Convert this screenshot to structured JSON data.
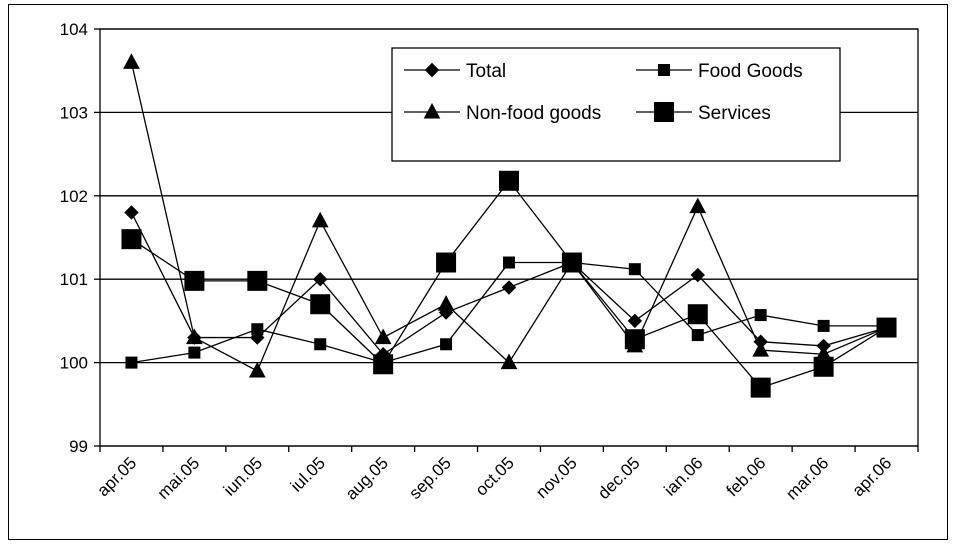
{
  "chart_data": {
    "type": "line",
    "title": "",
    "xlabel": "",
    "ylabel": "",
    "categories": [
      "apr.05",
      "mai.05",
      "iun.05",
      "iul.05",
      "aug.05",
      "sep.05",
      "oct.05",
      "nov.05",
      "dec.05",
      "ian.06",
      "feb.06",
      "mar.06",
      "apr.06"
    ],
    "ylim": [
      99,
      104
    ],
    "yticks": [
      99,
      100,
      101,
      102,
      103,
      104
    ],
    "grid": "horizontal",
    "legend_position": "top-right",
    "series": [
      {
        "name": "Total",
        "marker": "diamond",
        "values": [
          101.8,
          100.3,
          100.3,
          101.0,
          100.1,
          100.6,
          100.9,
          101.2,
          100.5,
          101.05,
          100.25,
          100.2,
          100.42
        ]
      },
      {
        "name": "Food Goods",
        "marker": "square-small",
        "values": [
          100.0,
          100.12,
          100.4,
          100.22,
          100.0,
          100.22,
          101.2,
          101.2,
          101.12,
          100.33,
          100.57,
          100.44,
          100.44
        ]
      },
      {
        "name": "Non-food goods",
        "marker": "triangle",
        "values": [
          103.6,
          100.3,
          99.9,
          101.7,
          100.3,
          100.7,
          100.0,
          101.2,
          100.2,
          101.87,
          100.15,
          100.1,
          100.42
        ]
      },
      {
        "name": "Services",
        "marker": "square-large",
        "values": [
          101.48,
          100.98,
          100.98,
          100.7,
          99.98,
          101.2,
          102.18,
          101.2,
          100.28,
          100.58,
          99.7,
          99.95,
          100.42
        ]
      }
    ],
    "colors": {
      "line": "#000000",
      "grid": "#000000",
      "background": "#ffffff"
    }
  }
}
